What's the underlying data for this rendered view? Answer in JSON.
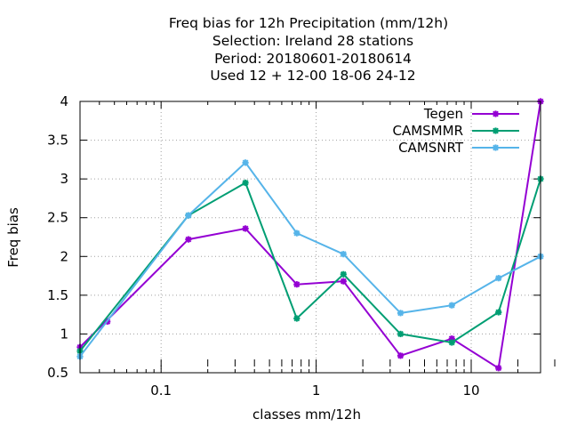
{
  "chart_data": {
    "type": "line",
    "title_lines": [
      "Freq bias  for 12h Precipitation (mm/12h)",
      "Selection: Ireland     28 stations",
      "Period: 20180601-20180614",
      "Used  12 + 12-00 18-06 24-12"
    ],
    "xlabel": "classes mm/12h",
    "ylabel": "Freq bias",
    "xscale": "log",
    "xlim": [
      0.03,
      28
    ],
    "ylim": [
      0.5,
      4
    ],
    "xticks": [
      {
        "value": 0.1,
        "label": "0.1"
      },
      {
        "value": 1,
        "label": "1"
      },
      {
        "value": 10,
        "label": "10"
      }
    ],
    "yticks": [
      {
        "value": 0.5,
        "label": "0.5"
      },
      {
        "value": 1,
        "label": "1"
      },
      {
        "value": 1.5,
        "label": "1.5"
      },
      {
        "value": 2,
        "label": "2"
      },
      {
        "value": 2.5,
        "label": "2.5"
      },
      {
        "value": 3,
        "label": "3"
      },
      {
        "value": 3.5,
        "label": "3.5"
      },
      {
        "value": 4,
        "label": "4"
      }
    ],
    "grid": true,
    "legend_position": "top-right",
    "x": [
      0.03,
      0.15,
      0.35,
      0.75,
      1.5,
      3.5,
      7.5,
      15,
      28
    ],
    "series": [
      {
        "name": "Tegen",
        "color": "#9400d3",
        "values": [
          0.83,
          2.22,
          2.36,
          1.64,
          1.68,
          0.72,
          0.94,
          0.56,
          4.0
        ],
        "extra_points": [
          {
            "x": 0.045,
            "y": 1.16
          }
        ]
      },
      {
        "name": "CAMSMMR",
        "color": "#009e73",
        "values": [
          0.78,
          2.53,
          2.95,
          1.2,
          1.77,
          1.0,
          0.89,
          1.28,
          3.0
        ],
        "extra_points": []
      },
      {
        "name": "CAMSNRT",
        "color": "#56b4e9",
        "values": [
          0.71,
          2.53,
          3.21,
          2.3,
          2.03,
          1.27,
          1.37,
          1.72,
          2.0
        ],
        "extra_points": []
      }
    ]
  }
}
